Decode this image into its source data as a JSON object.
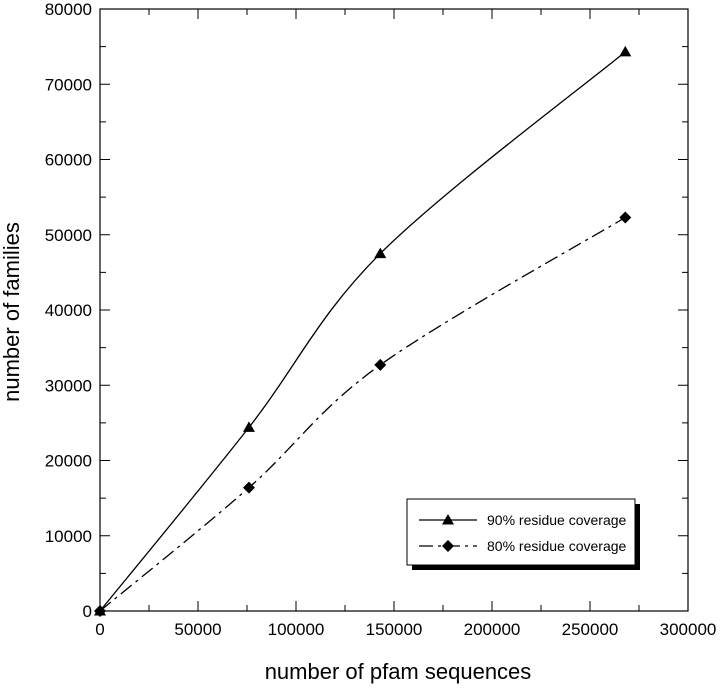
{
  "chart_data": {
    "type": "line",
    "title": "",
    "xlabel": "number of pfam sequences",
    "ylabel": "number of families",
    "xlim": [
      0,
      300000
    ],
    "ylim": [
      0,
      80000
    ],
    "xticks": [
      0,
      50000,
      100000,
      150000,
      200000,
      250000,
      300000
    ],
    "yticks": [
      0,
      10000,
      20000,
      30000,
      40000,
      50000,
      60000,
      70000,
      80000
    ],
    "xtick_labels": [
      "0",
      "50000",
      "100000",
      "150000",
      "200000",
      "250000",
      "300000"
    ],
    "ytick_labels": [
      "0",
      "10000",
      "20000",
      "30000",
      "40000",
      "50000",
      "60000",
      "70000",
      "80000"
    ],
    "grid": false,
    "legend_position": "bottom-right",
    "series": [
      {
        "name": "90% residue coverage",
        "marker": "triangle",
        "line_style": "solid",
        "x": [
          0,
          76000,
          143000,
          268000
        ],
        "y": [
          0,
          24400,
          47500,
          74300
        ]
      },
      {
        "name": "80% residue coverage",
        "marker": "diamond",
        "line_style": "dash-dot",
        "x": [
          0,
          76000,
          143000,
          268000
        ],
        "y": [
          0,
          16400,
          32700,
          52300
        ]
      }
    ]
  }
}
